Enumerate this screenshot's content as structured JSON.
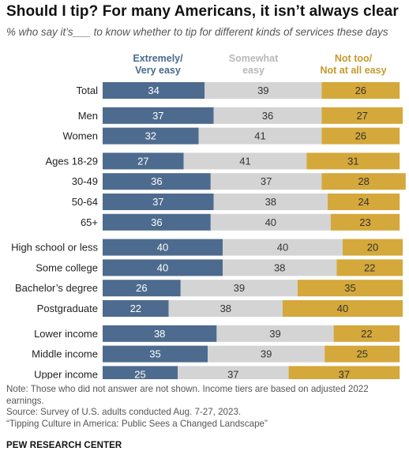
{
  "title": "Should I tip? For many Americans, it isn’t always clear",
  "subtitle": "% who say it’s___ to know whether to tip for different kinds of services these days",
  "legend": [
    {
      "line1": "Extremely/",
      "line2": "Very easy"
    },
    {
      "line1": "Somewhat",
      "line2": "easy"
    },
    {
      "line1": "Not too/",
      "line2": "Not at all easy"
    }
  ],
  "colors": {
    "very_easy": "#4d6b8e",
    "somewhat_easy": "#d4d4d4",
    "not_easy": "#d4a83a"
  },
  "chart_data": {
    "type": "bar",
    "stacked": true,
    "orientation": "horizontal",
    "categories": [
      "Total",
      "Men",
      "Women",
      "Ages 18-29",
      "30-49",
      "50-64",
      "65+",
      "High school or less",
      "Some college",
      "Bachelor’s degree",
      "Postgraduate",
      "Lower income",
      "Middle income",
      "Upper income"
    ],
    "groups": [
      [
        "Total"
      ],
      [
        "Men",
        "Women"
      ],
      [
        "Ages 18-29",
        "30-49",
        "50-64",
        "65+"
      ],
      [
        "High school or less",
        "Some college",
        "Bachelor’s degree",
        "Postgraduate"
      ],
      [
        "Lower income",
        "Middle income",
        "Upper income"
      ]
    ],
    "series": [
      {
        "name": "Extremely/Very easy",
        "values": [
          34,
          37,
          32,
          27,
          36,
          37,
          36,
          40,
          40,
          26,
          22,
          38,
          35,
          25
        ]
      },
      {
        "name": "Somewhat easy",
        "values": [
          39,
          36,
          41,
          41,
          37,
          38,
          40,
          40,
          38,
          39,
          38,
          39,
          39,
          37
        ]
      },
      {
        "name": "Not too/Not at all easy",
        "values": [
          26,
          27,
          26,
          31,
          28,
          24,
          23,
          20,
          22,
          35,
          40,
          22,
          25,
          37
        ]
      }
    ],
    "xlim": [
      0,
      100
    ],
    "grid": false,
    "legend_position": "top"
  },
  "notes": [
    "Note: Those who did not answer are not shown. Income tiers are based on adjusted 2022 earnings.",
    "Source: Survey of U.S. adults conducted Aug. 7-27, 2023.",
    "“Tipping Culture in America: Public Sees a Changed Landscape”"
  ],
  "brand": "PEW RESEARCH CENTER"
}
